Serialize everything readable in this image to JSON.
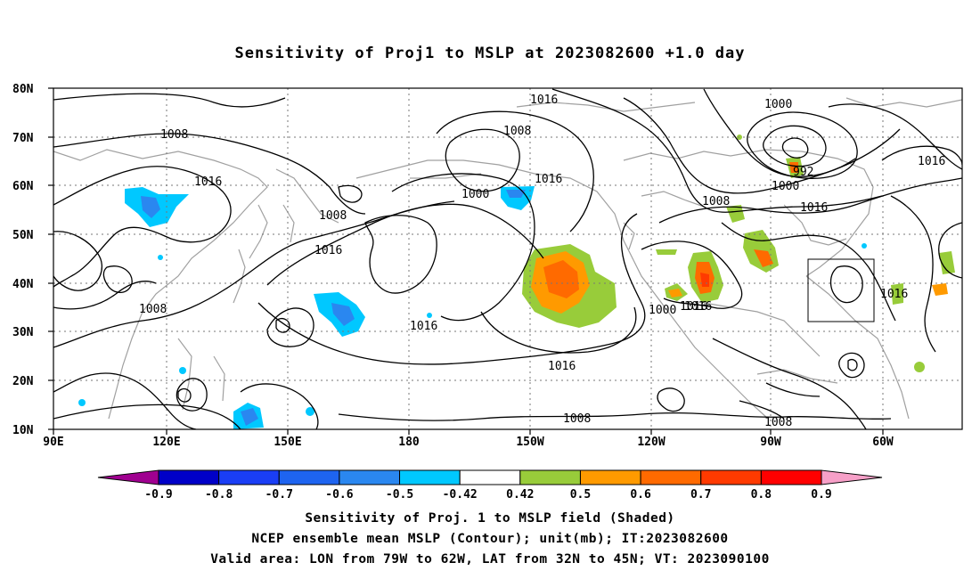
{
  "title": "Sensitivity of Proj1 to MSLP at 2023082600 +1.0 day",
  "lat_labels": [
    "80N",
    "70N",
    "60N",
    "50N",
    "40N",
    "30N",
    "20N",
    "10N"
  ],
  "lon_labels": [
    "90E",
    "120E",
    "150E",
    "180",
    "150W",
    "120W",
    "90W",
    "60W"
  ],
  "contour_labels": [
    "1016",
    "1008",
    "1016",
    "1008",
    "1016",
    "1008",
    "1016",
    "1008",
    "1000",
    "1016",
    "1016",
    "1016",
    "1008",
    "1008",
    "1000",
    "992",
    "1000",
    "1016",
    "1016",
    "1016",
    "1000",
    "1016",
    "1008"
  ],
  "colorbar": {
    "labels": [
      "-0.9",
      "-0.8",
      "-0.7",
      "-0.6",
      "-0.5",
      "-0.42",
      "0.42",
      "0.5",
      "0.6",
      "0.7",
      "0.8",
      "0.9"
    ],
    "colors": [
      "#a00090",
      "#0000c8",
      "#1a3ef5",
      "#1e64f0",
      "#2a87f0",
      "#00c8ff",
      "#ffffff",
      "#98cc3a",
      "#ff9a00",
      "#ff6a00",
      "#ff3a00",
      "#ff0000",
      "#f7a0c8"
    ]
  },
  "captions": [
    "Sensitivity of Proj. 1 to MSLP field (Shaded)",
    "NCEP ensemble mean MSLP (Contour); unit(mb); IT:2023082600",
    "Valid area: LON from 79W to 62W, LAT from 32N to 45N; VT: 2023090100"
  ]
}
